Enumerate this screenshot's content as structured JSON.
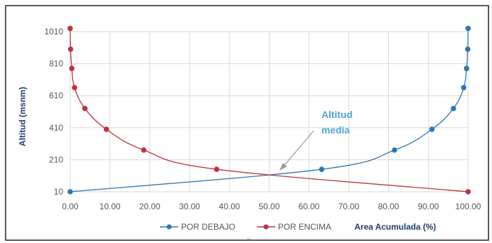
{
  "chart_data": {
    "type": "line",
    "xlabel": "Area Acumulada (%)",
    "ylabel": "Altitud (msnm)",
    "xlim": [
      0,
      100
    ],
    "ylim": [
      10,
      1010
    ],
    "x_ticks": [
      "0.00",
      "10.00",
      "20.00",
      "30.00",
      "40.00",
      "50.00",
      "60.00",
      "70.00",
      "80.00",
      "90.00",
      "100.00"
    ],
    "y_ticks": [
      "10",
      "210",
      "410",
      "610",
      "810",
      "1010"
    ],
    "grid": true,
    "legend_position": "bottom",
    "annotation": {
      "lines": [
        "Altitud",
        "media"
      ],
      "color": "#4aa6d6"
    },
    "series": [
      {
        "name": "POR DEBAJO",
        "color": "#2e75b6",
        "points": [
          {
            "x": 0.0,
            "y": 10
          },
          {
            "x": 63.2,
            "y": 150
          },
          {
            "x": 81.5,
            "y": 270
          },
          {
            "x": 90.9,
            "y": 400
          },
          {
            "x": 96.3,
            "y": 530
          },
          {
            "x": 98.9,
            "y": 660
          },
          {
            "x": 99.6,
            "y": 780
          },
          {
            "x": 99.9,
            "y": 900
          },
          {
            "x": 100.0,
            "y": 1030
          }
        ]
      },
      {
        "name": "POR ENCIMA",
        "color": "#c0313c",
        "points": [
          {
            "x": 100.0,
            "y": 10
          },
          {
            "x": 36.8,
            "y": 150
          },
          {
            "x": 18.5,
            "y": 270
          },
          {
            "x": 9.1,
            "y": 400
          },
          {
            "x": 3.7,
            "y": 530
          },
          {
            "x": 1.1,
            "y": 660
          },
          {
            "x": 0.4,
            "y": 780
          },
          {
            "x": 0.1,
            "y": 900
          },
          {
            "x": 0.0,
            "y": 1030
          }
        ]
      }
    ]
  }
}
